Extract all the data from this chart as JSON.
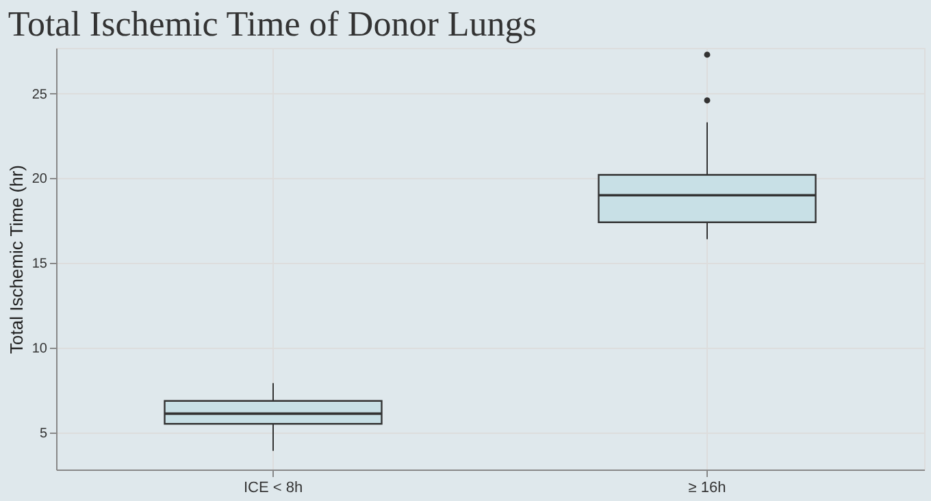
{
  "chart_data": {
    "type": "box",
    "title": "Total Ischemic Time of Donor Lungs",
    "ylabel": "Total Ischemic Time (hr)",
    "categories": [
      "ICE < 8h",
      "≥ 16h"
    ],
    "boxes": [
      {
        "low": 3.9,
        "q1": 5.5,
        "median": 6.1,
        "q3": 6.85,
        "high": 7.9
      },
      {
        "low": 16.4,
        "q1": 17.4,
        "median": 19.0,
        "q3": 20.2,
        "high": 23.3,
        "outliers": [
          24.6,
          27.3
        ]
      }
    ],
    "color": "#333333",
    "ylim": [
      2.8,
      27.7
    ],
    "yticks": [
      5,
      10,
      15,
      20,
      25
    ],
    "grid": true
  }
}
